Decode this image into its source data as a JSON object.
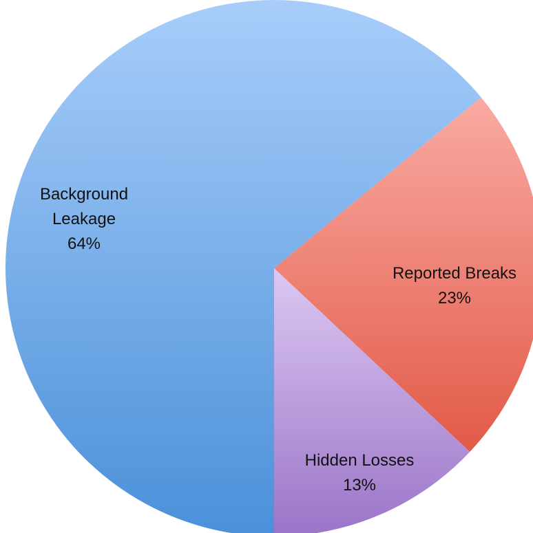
{
  "chart_data": {
    "type": "pie",
    "slices": [
      {
        "key": "background",
        "label_lines": [
          "Background",
          "Leakage"
        ],
        "percent_text": "64%",
        "value": 64,
        "color_light": "#a8cdfa",
        "color_dark": "#4a90d9"
      },
      {
        "key": "reported",
        "label_lines": [
          "Reported Breaks"
        ],
        "percent_text": "23%",
        "value": 23,
        "color_light": "#f9aaa3",
        "color_dark": "#e25a47"
      },
      {
        "key": "hidden",
        "label_lines": [
          "Hidden Losses"
        ],
        "percent_text": "13%",
        "value": 13,
        "color_light": "#dcc8f2",
        "color_dark": "#9a74c8"
      }
    ]
  }
}
